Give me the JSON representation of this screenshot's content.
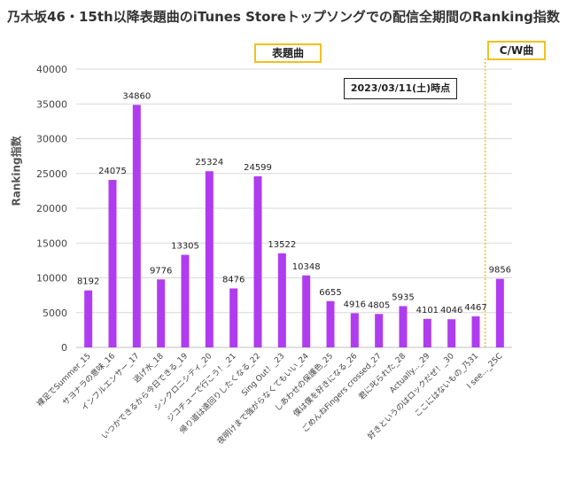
{
  "title": "乃木坂46・15th以降表題曲のiTunes Storeトップソングでの配信全期間のRanking指数",
  "legend_box_a": "表題曲",
  "legend_box_b": "C/W曲",
  "date_note": "2023/03/11(土)時点",
  "colors": {
    "bar": "#b03cf0",
    "divider": "#f2c01e",
    "grid": "#d9d9d9"
  },
  "chart_data": {
    "type": "bar",
    "title": "乃木坂46・15th以降表題曲のiTunes Storeトップソングでの配信全期間のRanking指数",
    "xlabel": "",
    "ylabel": "Ranking指数",
    "ylim": [
      0,
      40000
    ],
    "yticks": [
      0,
      5000,
      10000,
      15000,
      20000,
      25000,
      30000,
      35000,
      40000
    ],
    "grid": true,
    "categories": [
      "裸足でSummer_15",
      "サヨナラの意味_16",
      "インフルエンサー_17",
      "逃げ水_18",
      "いつかできるから今日できる_19",
      "シンクロニシティ_20",
      "ジコチューで行こう！_21",
      "帰り道は遠回りしたくなる_22",
      "Sing Out！_23",
      "夜明けまで強がらなくてもいい_24",
      "しあわせの保護色_25",
      "僕は僕を好きになる_26",
      "ごめんねFingers crossed_27",
      "君に叱られた_28",
      "Actually..._29",
      "好きというのはロックだぜ！_30",
      "ここにはないもの_乃31",
      "I see..._25C"
    ],
    "values": [
      8192,
      24075,
      34860,
      9776,
      13305,
      25324,
      8476,
      24599,
      13522,
      10348,
      6655,
      4916,
      4805,
      5935,
      4101,
      4046,
      4467,
      9856
    ]
  }
}
